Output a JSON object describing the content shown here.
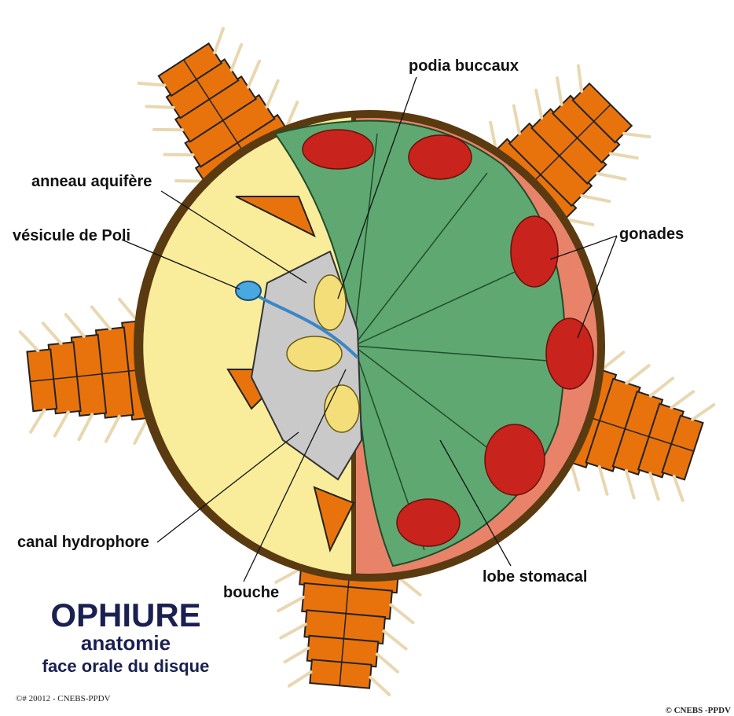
{
  "header": {
    "title": "OPHIURE",
    "subtitle": "anatomie",
    "caption": "face orale du disque"
  },
  "labels": [
    "podia buccaux",
    "anneau aquifère",
    "vésicule de Poli",
    "gonades",
    "canal hydrophore",
    "bouche",
    "lobe stomacal"
  ],
  "credits": [
    "©# 20012 - CNEBS-PPDV",
    "© CNEBS -PPDV"
  ]
}
